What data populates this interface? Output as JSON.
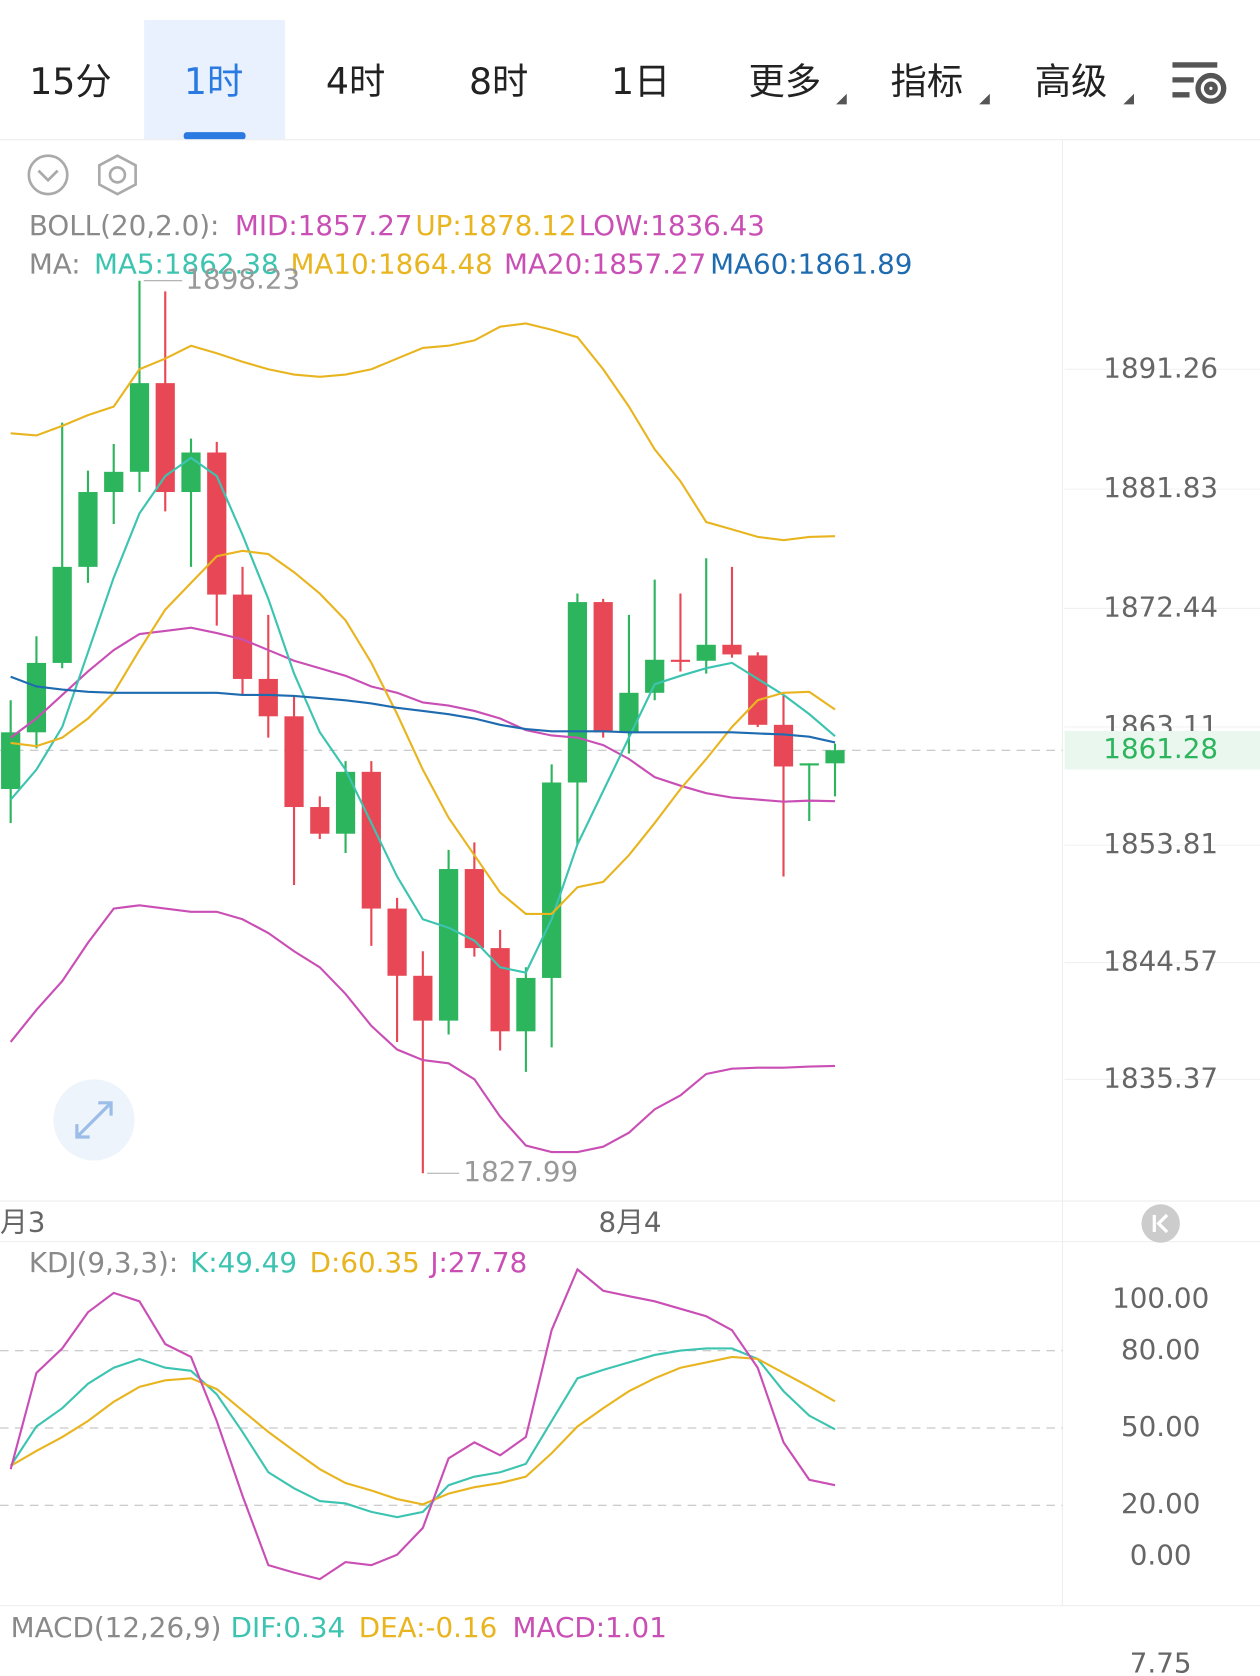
{
  "tabs": [
    "15分",
    "1时",
    "4时",
    "8时",
    "1日",
    "更多",
    "指标",
    "高级"
  ],
  "selected_tab": 1,
  "chart_data": [
    {
      "type": "candlestick",
      "boll_label": "BOLL(20,2.0):",
      "ma_label": "MA:",
      "ma20_label": "MA20:1857.27",
      "up_color": "#2db55d",
      "down_color": "#e84855",
      "open": [
        1858.23,
        1862.69,
        1868.15,
        1875.71,
        1881.6,
        1883.19,
        1890.17,
        1881.6,
        1884.71,
        1873.53,
        1866.89,
        1863.95,
        1856.81,
        1854.71,
        1859.58,
        1848.82,
        1843.53,
        1840.0,
        1851.93,
        1845.71,
        1839.16,
        1843.36,
        1858.74,
        1872.94,
        1862.69,
        1865.8,
        1868.4,
        1868.32,
        1869.58,
        1868.74,
        1863.28,
        1860.08,
        1860.25
      ],
      "high": [
        1865.21,
        1870.25,
        1887.06,
        1883.28,
        1885.38,
        1898.23,
        1897.39,
        1885.8,
        1885.55,
        1875.71,
        1871.93,
        1865.63,
        1857.65,
        1860.42,
        1860.42,
        1849.66,
        1845.46,
        1853.44,
        1854.03,
        1847.14,
        1844.2,
        1860.17,
        1873.61,
        1873.19,
        1871.93,
        1874.71,
        1873.61,
        1876.39,
        1875.71,
        1868.99,
        1865.63,
        1860.25,
        1861.8
      ],
      "low": [
        1855.55,
        1861.43,
        1867.73,
        1874.45,
        1879.08,
        1881.6,
        1880.08,
        1875.71,
        1871.09,
        1865.63,
        1862.27,
        1850.67,
        1854.29,
        1853.19,
        1845.88,
        1838.32,
        1827.99,
        1838.91,
        1845.04,
        1837.65,
        1835.97,
        1837.9,
        1853.87,
        1862.27,
        1861.01,
        1865.21,
        1867.48,
        1867.31,
        1868.57,
        1863.11,
        1851.34,
        1855.71,
        1857.65
      ],
      "close": [
        1862.69,
        1868.15,
        1875.71,
        1881.6,
        1883.19,
        1890.17,
        1881.6,
        1884.71,
        1873.53,
        1866.89,
        1863.95,
        1856.81,
        1854.71,
        1859.58,
        1848.82,
        1843.53,
        1840.0,
        1851.93,
        1845.71,
        1839.16,
        1843.36,
        1858.74,
        1872.94,
        1862.69,
        1865.8,
        1868.4,
        1868.32,
        1869.58,
        1868.82,
        1863.28,
        1860.0,
        1860.25,
        1861.28
      ],
      "series": [
        {
          "name": "MID:1857.27",
          "color": "#c94fb5",
          "values": [
            1862.27,
            1863.78,
            1865.63,
            1867.48,
            1869.16,
            1870.42,
            1870.67,
            1870.92,
            1870.5,
            1870.0,
            1869.16,
            1868.32,
            1867.73,
            1867.14,
            1866.3,
            1865.8,
            1865.04,
            1864.79,
            1864.37,
            1863.78,
            1862.86,
            1862.44,
            1862.27,
            1861.68,
            1860.59,
            1859.16,
            1858.49,
            1857.9,
            1857.56,
            1857.4,
            1857.23,
            1857.31,
            1857.27
          ]
        },
        {
          "name": "UP:1878.12",
          "color": "#e8b520",
          "values": [
            1886.22,
            1886.05,
            1886.81,
            1887.65,
            1888.32,
            1891.26,
            1892.1,
            1893.11,
            1892.52,
            1891.85,
            1891.26,
            1890.84,
            1890.67,
            1890.84,
            1891.26,
            1892.1,
            1892.94,
            1893.11,
            1893.53,
            1894.62,
            1894.87,
            1894.37,
            1893.78,
            1891.26,
            1888.32,
            1884.96,
            1882.44,
            1879.24,
            1878.66,
            1878.07,
            1877.81,
            1878.07,
            1878.12
          ]
        },
        {
          "name": "LOW:1836.43",
          "color": "#c94fb5",
          "values": [
            1838.32,
            1840.84,
            1843.11,
            1846.13,
            1848.82,
            1849.08,
            1848.82,
            1848.57,
            1848.57,
            1847.98,
            1846.89,
            1845.46,
            1844.2,
            1842.1,
            1839.58,
            1837.73,
            1836.89,
            1836.64,
            1835.38,
            1832.44,
            1830.17,
            1829.66,
            1829.66,
            1830.08,
            1831.18,
            1833.02,
            1834.12,
            1835.8,
            1836.22,
            1836.3,
            1836.3,
            1836.39,
            1836.43
          ]
        },
        {
          "name": "MA5:1862.38",
          "color": "#3cc4b0",
          "values": [
            1857.39,
            1859.75,
            1863.11,
            1868.99,
            1874.87,
            1879.92,
            1882.86,
            1884.29,
            1882.86,
            1878.23,
            1873.19,
            1867.31,
            1862.69,
            1859.75,
            1855.55,
            1851.34,
            1847.98,
            1847.31,
            1846.3,
            1844.2,
            1843.78,
            1847.98,
            1853.87,
            1858.07,
            1862.27,
            1866.47,
            1867.14,
            1867.73,
            1868.15,
            1866.89,
            1865.63,
            1864.12,
            1862.38
          ]
        },
        {
          "name": "MA10:1864.48",
          "color": "#e8b520",
          "values": [
            1861.85,
            1861.6,
            1862.27,
            1863.78,
            1865.8,
            1869.16,
            1872.35,
            1874.45,
            1876.55,
            1876.97,
            1876.72,
            1875.29,
            1873.61,
            1871.51,
            1868.15,
            1864.12,
            1859.75,
            1855.97,
            1853.02,
            1850.08,
            1848.4,
            1848.4,
            1850.5,
            1850.92,
            1853.02,
            1855.55,
            1858.23,
            1860.59,
            1863.11,
            1865.21,
            1865.8,
            1865.88,
            1864.48
          ]
        },
        {
          "name": "MA60:1861.89",
          "color": "#1f6bb0",
          "values": [
            1867.06,
            1866.3,
            1866.05,
            1865.88,
            1865.8,
            1865.8,
            1865.8,
            1865.8,
            1865.8,
            1865.63,
            1865.63,
            1865.55,
            1865.38,
            1865.21,
            1864.96,
            1864.62,
            1864.37,
            1864.12,
            1863.78,
            1863.28,
            1862.94,
            1862.77,
            1862.77,
            1862.77,
            1862.69,
            1862.69,
            1862.69,
            1862.69,
            1862.69,
            1862.6,
            1862.52,
            1862.35,
            1861.89
          ]
        }
      ],
      "x_labels": [
        "月3",
        "8月4"
      ],
      "ylim": [
        1825.97,
        1909.33
      ],
      "yticks": [
        1891.26,
        1881.83,
        1872.44,
        1863.11,
        1853.81,
        1844.57,
        1835.37
      ]
    },
    {
      "type": "line",
      "title": "KDJ(9,3,3):",
      "series": [
        {
          "name": "K:49.49",
          "color": "#3cc4b0",
          "values": [
            35.3,
            50.6,
            57.7,
            67.2,
            73.4,
            76.8,
            73.4,
            72.2,
            63.1,
            48.5,
            32.8,
            26.6,
            21.6,
            20.7,
            17.4,
            15.4,
            17.4,
            27.8,
            31.1,
            32.8,
            36.1,
            52.7,
            69.3,
            72.6,
            75.5,
            78.4,
            80.1,
            80.9,
            80.9,
            76.8,
            64.3,
            54.8,
            49.49
          ]
        },
        {
          "name": "D:60.35",
          "color": "#e8b520",
          "values": [
            35.3,
            41.1,
            46.5,
            52.7,
            60.2,
            66.0,
            68.5,
            69.3,
            65.1,
            56.8,
            48.5,
            41.1,
            34.0,
            28.6,
            25.7,
            22.4,
            20.3,
            24.5,
            27.0,
            28.6,
            31.1,
            40.2,
            50.6,
            57.7,
            64.3,
            69.3,
            73.4,
            75.5,
            77.6,
            76.8,
            71.4,
            66.0,
            60.35
          ]
        },
        {
          "name": "J:27.78",
          "color": "#c94fb5",
          "values": [
            34.0,
            71.4,
            80.9,
            95.0,
            102.5,
            99.2,
            82.6,
            77.6,
            52.7,
            23.7,
            -3.3,
            -6.2,
            -8.7,
            -2.1,
            -3.3,
            0.8,
            11.2,
            38.2,
            44.4,
            39.4,
            46.5,
            88.0,
            111.6,
            103.3,
            101.2,
            99.2,
            96.3,
            93.4,
            88.0,
            73.4,
            44.4,
            29.9,
            27.78
          ]
        }
      ],
      "ylim": [
        -17.8,
        122.4
      ],
      "yticks": [
        {
          "value": 100,
          "label": "100.00"
        },
        {
          "value": 80,
          "label": "80.00"
        },
        {
          "value": 50,
          "label": "50.00"
        },
        {
          "value": 20,
          "label": "20.00"
        },
        {
          "value": 0,
          "label": "0.00"
        }
      ]
    },
    {
      "type": "macd",
      "title": "MACD(12,26,9)",
      "labels": [
        {
          "text": "DIF:0.34",
          "color": "#3cc4b0"
        },
        {
          "text": "DEA:-0.16",
          "color": "#e8b520"
        },
        {
          "text": "MACD:1.01",
          "color": "#c94fb5"
        }
      ],
      "yticks": [
        7.75
      ]
    }
  ]
}
